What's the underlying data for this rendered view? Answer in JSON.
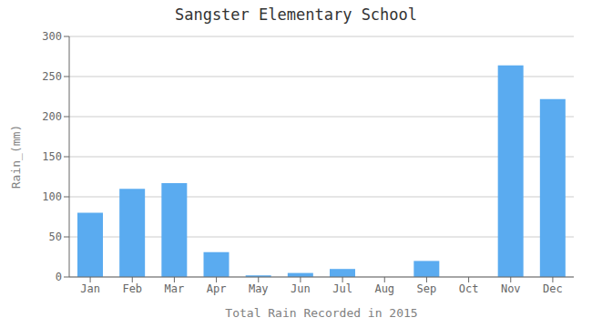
{
  "chart_data": {
    "type": "bar",
    "title": "Sangster Elementary School",
    "xlabel": "Total Rain Recorded in 2015",
    "ylabel": "Rain_(mm)",
    "categories": [
      "Jan",
      "Feb",
      "Mar",
      "Apr",
      "May",
      "Jun",
      "Jul",
      "Aug",
      "Sep",
      "Oct",
      "Nov",
      "Dec"
    ],
    "values": [
      80,
      110,
      117,
      31,
      2,
      5,
      10,
      0,
      20,
      0,
      264,
      222
    ],
    "color": "#5aabf0",
    "ylim": [
      0,
      300
    ],
    "yticks": [
      0,
      50,
      100,
      150,
      200,
      250,
      300
    ],
    "grid": true
  }
}
